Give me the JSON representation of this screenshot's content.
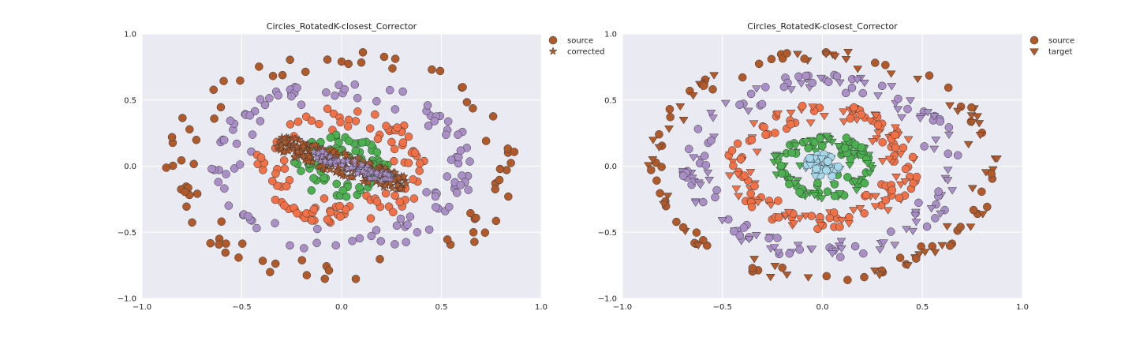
{
  "chart_data": [
    {
      "type": "scatter",
      "title": "Circles_RotatedK-closest_Corrector",
      "xlim": [
        -1.0,
        1.0
      ],
      "ylim": [
        -1.0,
        1.0
      ],
      "xticks": [
        "−1.0",
        "−0.5",
        "0.0",
        "0.5",
        "1.0"
      ],
      "yticks": [
        "1.0",
        "0.5",
        "0.0",
        "−0.5",
        "−1.0"
      ],
      "grid": true,
      "legend": {
        "placement": "outside-top-right",
        "entries": [
          "source",
          "corrected"
        ]
      },
      "legend_markers": [
        "circle",
        "star"
      ],
      "rings": [
        {
          "ring": "outer",
          "color": "#b05a2c",
          "rmin": 0.68,
          "rmax": 0.88,
          "points": 80
        },
        {
          "ring": "second",
          "color": "#a98fc6",
          "rmin": 0.45,
          "rmax": 0.66,
          "points": 110
        },
        {
          "ring": "third",
          "color": "#f07047",
          "rmin": 0.24,
          "rmax": 0.44,
          "points": 110
        },
        {
          "ring": "fourth",
          "color": "#4caf50",
          "rmin": 0.08,
          "rmax": 0.24,
          "points": 70
        }
      ],
      "corrected_band": {
        "marker": "star",
        "color": "#b05a2c",
        "center": [
          0.0,
          0.02
        ],
        "half_length": 0.36,
        "half_width": 0.08,
        "angle_deg": -27,
        "points": 230
      },
      "corrected_inner": {
        "marker": "star",
        "color": "#a98fc6",
        "center": [
          0.05,
          0.0
        ],
        "half_length": 0.22,
        "half_width": 0.05,
        "angle_deg": -27,
        "points": 70
      }
    },
    {
      "type": "scatter",
      "title": "Circles_RotatedK-closest_Corrector",
      "xlim": [
        -1.0,
        1.0
      ],
      "ylim": [
        -1.0,
        1.0
      ],
      "xticks": [
        "−1.0",
        "−0.5",
        "0.0",
        "0.5",
        "1.0"
      ],
      "yticks": [
        "1.0",
        "0.5",
        "0.0",
        "−0.5",
        "−1.0"
      ],
      "grid": true,
      "legend": {
        "placement": "outside-top-right",
        "entries": [
          "source",
          "target"
        ]
      },
      "legend_markers": [
        "circle",
        "triangle-down"
      ],
      "rings": [
        {
          "ring": "outer",
          "color": "#b05a2c",
          "rmin": 0.74,
          "rmax": 0.88,
          "points": 120
        },
        {
          "ring": "second",
          "color": "#a98fc6",
          "rmin": 0.52,
          "rmax": 0.7,
          "points": 150
        },
        {
          "ring": "third",
          "color": "#f07047",
          "rmin": 0.28,
          "rmax": 0.48,
          "points": 160
        },
        {
          "ring": "fourth",
          "color": "#4caf50",
          "rmin": 0.1,
          "rmax": 0.25,
          "points": 110
        },
        {
          "ring": "center",
          "color": "#a6d8ea",
          "rmin": 0.0,
          "rmax": 0.09,
          "points": 45
        }
      ]
    }
  ]
}
